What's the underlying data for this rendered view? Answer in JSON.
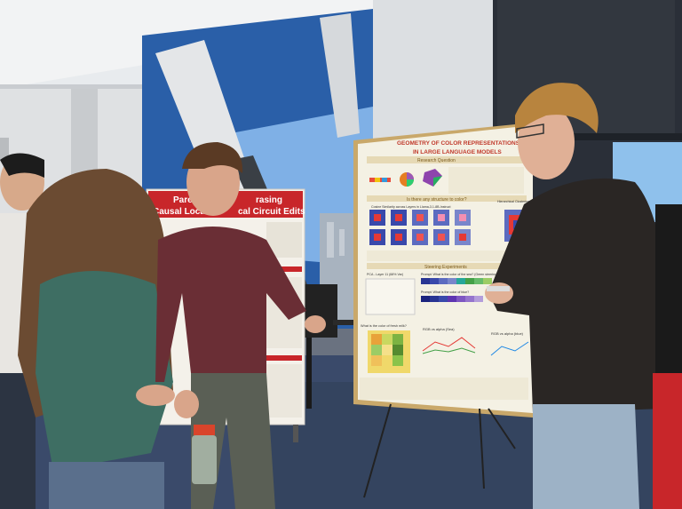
{
  "poster_right": {
    "title_line1": "GEOMETRY OF COLOR REPRESENTATIONS",
    "title_line2": "IN LARGE LANGUAGE MODELS",
    "section_research": "Research Question",
    "section_structure": "Is there any structure to color?",
    "subsection_cosine": "Cosine Similarity across Layers in Llama-3.1-8B-Instruct",
    "subsection_clustering": "Hierarchical Clustering",
    "section_steering": "Steering Experiments",
    "pca_label": "PCA - Layer 11 (68% Var)",
    "prompt_sea": "Prompt: What is the color of the sea? (Green steering vec)",
    "prompt_blue": "Prompt: What is the color of blue?",
    "question_fresh_milk": "What is the color of fresh milk?",
    "rgb_alpha_sea": "RGB vs alpha (Sea)",
    "rgb_alpha_blue": "RGB vs alpha (blue)",
    "colors": {
      "accent_red": "#c0392b",
      "board": "#f4f1e4"
    }
  },
  "poster_left": {
    "title_line1": "Pareto",
    "title_line1b": "rasing",
    "title_line2": "Causal Locali",
    "title_line2b": "cal Circuit Edits",
    "colors": {
      "header_red": "#c8262a"
    }
  },
  "objects": {
    "water_bottle_color": "#d9442b"
  }
}
